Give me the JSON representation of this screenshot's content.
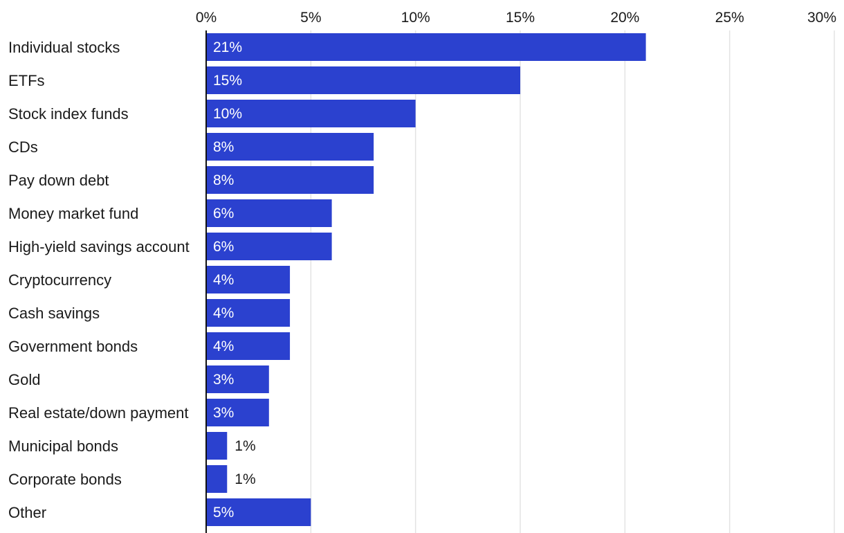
{
  "chart_data": {
    "type": "bar",
    "orientation": "horizontal",
    "title": "",
    "xlabel": "",
    "ylabel": "",
    "xlim": [
      0,
      30
    ],
    "ticks": [
      0,
      5,
      10,
      15,
      20,
      25,
      30
    ],
    "tick_labels": [
      "0%",
      "5%",
      "10%",
      "15%",
      "20%",
      "25%",
      "30%"
    ],
    "grid": true,
    "legend": "none",
    "categories": [
      "Individual stocks",
      "ETFs",
      "Stock index funds",
      "CDs",
      "Pay down debt",
      "Money market fund",
      "High-yield savings account",
      "Cryptocurrency",
      "Cash savings",
      "Government bonds",
      "Gold",
      "Real estate/down payment",
      "Municipal bonds",
      "Corporate bonds",
      "Other"
    ],
    "values": [
      21,
      15,
      10,
      8,
      8,
      6,
      6,
      4,
      4,
      4,
      3,
      3,
      1,
      1,
      5
    ],
    "value_labels": [
      "21%",
      "15%",
      "10%",
      "8%",
      "8%",
      "6%",
      "6%",
      "4%",
      "4%",
      "4%",
      "3%",
      "3%",
      "1%",
      "1%",
      "5%"
    ],
    "colors": {
      "bar": "#2b41cf",
      "gridline": "#e3e3e3",
      "axis": "#111111",
      "label_inside": "#ffffff",
      "label_outside": "#1a1a1a"
    }
  }
}
